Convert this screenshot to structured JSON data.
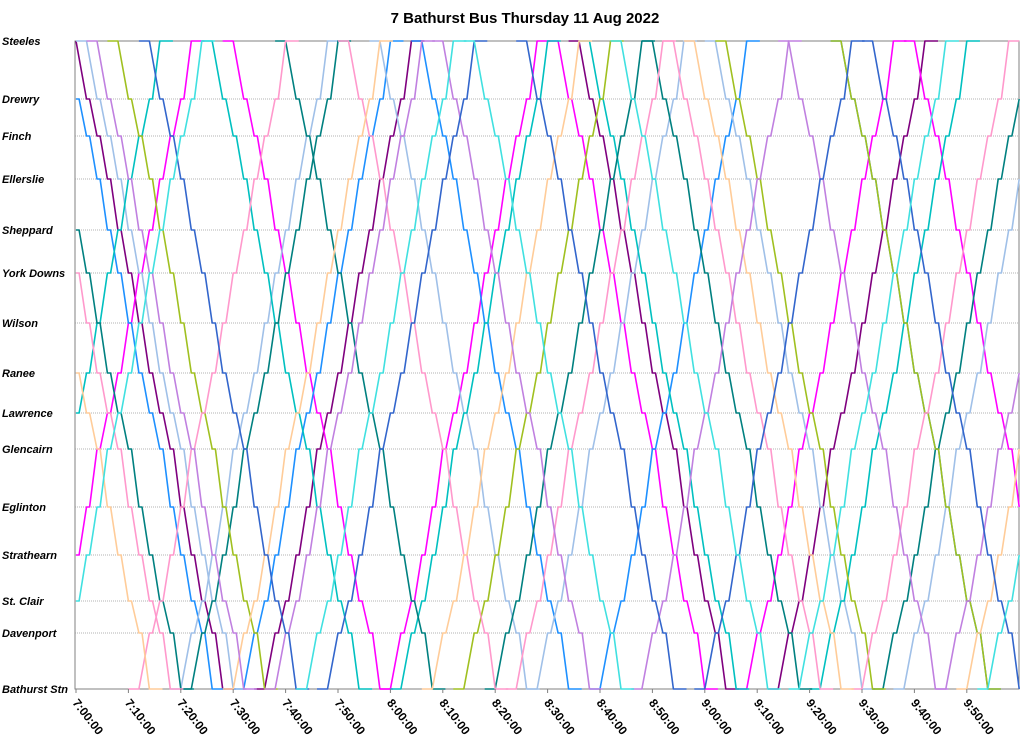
{
  "chart_data": {
    "type": "line",
    "title": "7 Bathurst Bus Thursday 11 Aug 2022",
    "xlabel": "",
    "ylabel": "",
    "x_ticks": [
      "7:00:00",
      "7:10:00",
      "7:20:00",
      "7:30:00",
      "7:40:00",
      "7:50:00",
      "8:00:00",
      "8:10:00",
      "8:20:00",
      "8:30:00",
      "8:40:00",
      "8:50:00",
      "9:00:00",
      "9:10:00",
      "9:20:00",
      "9:30:00",
      "9:40:00",
      "9:50:00"
    ],
    "x_range_minutes": [
      0,
      180
    ],
    "stops": [
      {
        "name": "Steeles",
        "pos": 0
      },
      {
        "name": "Drewry",
        "pos": 58
      },
      {
        "name": "Finch",
        "pos": 95
      },
      {
        "name": "Ellerslie",
        "pos": 138
      },
      {
        "name": "Sheppard",
        "pos": 189
      },
      {
        "name": "York Downs",
        "pos": 232
      },
      {
        "name": "Wilson",
        "pos": 282
      },
      {
        "name": "Ranee",
        "pos": 332
      },
      {
        "name": "Lawrence",
        "pos": 372
      },
      {
        "name": "Glencairn",
        "pos": 408
      },
      {
        "name": "Eglinton",
        "pos": 466
      },
      {
        "name": "Strathearn",
        "pos": 514
      },
      {
        "name": "St. Clair",
        "pos": 560
      },
      {
        "name": "Davenport",
        "pos": 592
      },
      {
        "name": "Bathurst Stn",
        "pos": 648
      }
    ],
    "grid": true,
    "legend": "none",
    "y_range": [
      0,
      648
    ],
    "trip_duration_minutes": 28,
    "layover_minutes": 5,
    "color_palette": [
      "#7f007f",
      "#ff00ff",
      "#1e90ff",
      "#a0c0e8",
      "#00c0c0",
      "#008080",
      "#a0c020",
      "#ff99cc",
      "#ffcc99",
      "#c080e0",
      "#3366cc",
      "#40e0e0"
    ],
    "series": [
      {
        "color": "#7f007f",
        "trips": [
          [
            0,
            "S"
          ],
          [
            36,
            "N"
          ],
          [
            96,
            "S"
          ],
          [
            134,
            "N"
          ]
        ]
      },
      {
        "color": "#ff00ff",
        "trips": [
          [
            -6,
            "N"
          ],
          [
            30,
            "S"
          ],
          [
            60,
            "N"
          ],
          [
            92,
            "S"
          ],
          [
            128,
            "N"
          ],
          [
            160,
            "S"
          ]
        ]
      },
      {
        "color": "#1e90ff",
        "trips": [
          [
            -2,
            "S"
          ],
          [
            32,
            "N"
          ],
          [
            66,
            "S"
          ],
          [
            100,
            "N"
          ],
          [
            146,
            "S"
          ]
        ]
      },
      {
        "color": "#a0c0e8",
        "trips": [
          [
            2,
            "S"
          ],
          [
            20,
            "N"
          ],
          [
            58,
            "S"
          ],
          [
            88,
            "N"
          ],
          [
            122,
            "S"
          ],
          [
            158,
            "N"
          ]
        ]
      },
      {
        "color": "#00c0c0",
        "trips": [
          [
            -12,
            "N"
          ],
          [
            26,
            "S"
          ],
          [
            62,
            "N"
          ],
          [
            98,
            "S"
          ],
          [
            142,
            "N"
          ]
        ]
      },
      {
        "color": "#008080",
        "trips": [
          [
            -8,
            "S"
          ],
          [
            22,
            "N"
          ],
          [
            40,
            "S"
          ],
          [
            80,
            "N"
          ],
          [
            110,
            "S"
          ],
          [
            154,
            "N"
          ]
        ]
      },
      {
        "color": "#a0c020",
        "trips": [
          [
            8,
            "S"
          ],
          [
            74,
            "N"
          ],
          [
            124,
            "S"
          ],
          [
            146,
            "S"
          ]
        ]
      },
      {
        "color": "#ff99cc",
        "trips": [
          [
            -10,
            "S"
          ],
          [
            12,
            "N"
          ],
          [
            52,
            "S"
          ],
          [
            84,
            "N"
          ],
          [
            114,
            "S"
          ],
          [
            150,
            "N"
          ]
        ]
      },
      {
        "color": "#ffcc99",
        "trips": [
          [
            -14,
            "S"
          ],
          [
            30,
            "N"
          ],
          [
            68,
            "N"
          ],
          [
            118,
            "S"
          ],
          [
            170,
            "N"
          ]
        ]
      },
      {
        "color": "#c080e0",
        "trips": [
          [
            4,
            "S"
          ],
          [
            38,
            "N"
          ],
          [
            70,
            "S"
          ],
          [
            108,
            "N"
          ],
          [
            136,
            "S"
          ],
          [
            166,
            "N"
          ]
        ]
      },
      {
        "color": "#3366cc",
        "trips": [
          [
            14,
            "S"
          ],
          [
            48,
            "N"
          ],
          [
            86,
            "S"
          ],
          [
            120,
            "N"
          ],
          [
            152,
            "S"
          ]
        ]
      },
      {
        "color": "#40e0e0",
        "trips": [
          [
            -4,
            "N"
          ],
          [
            44,
            "N"
          ],
          [
            76,
            "S"
          ],
          [
            104,
            "S"
          ],
          [
            138,
            "N"
          ],
          [
            174,
            "N"
          ]
        ]
      }
    ]
  }
}
